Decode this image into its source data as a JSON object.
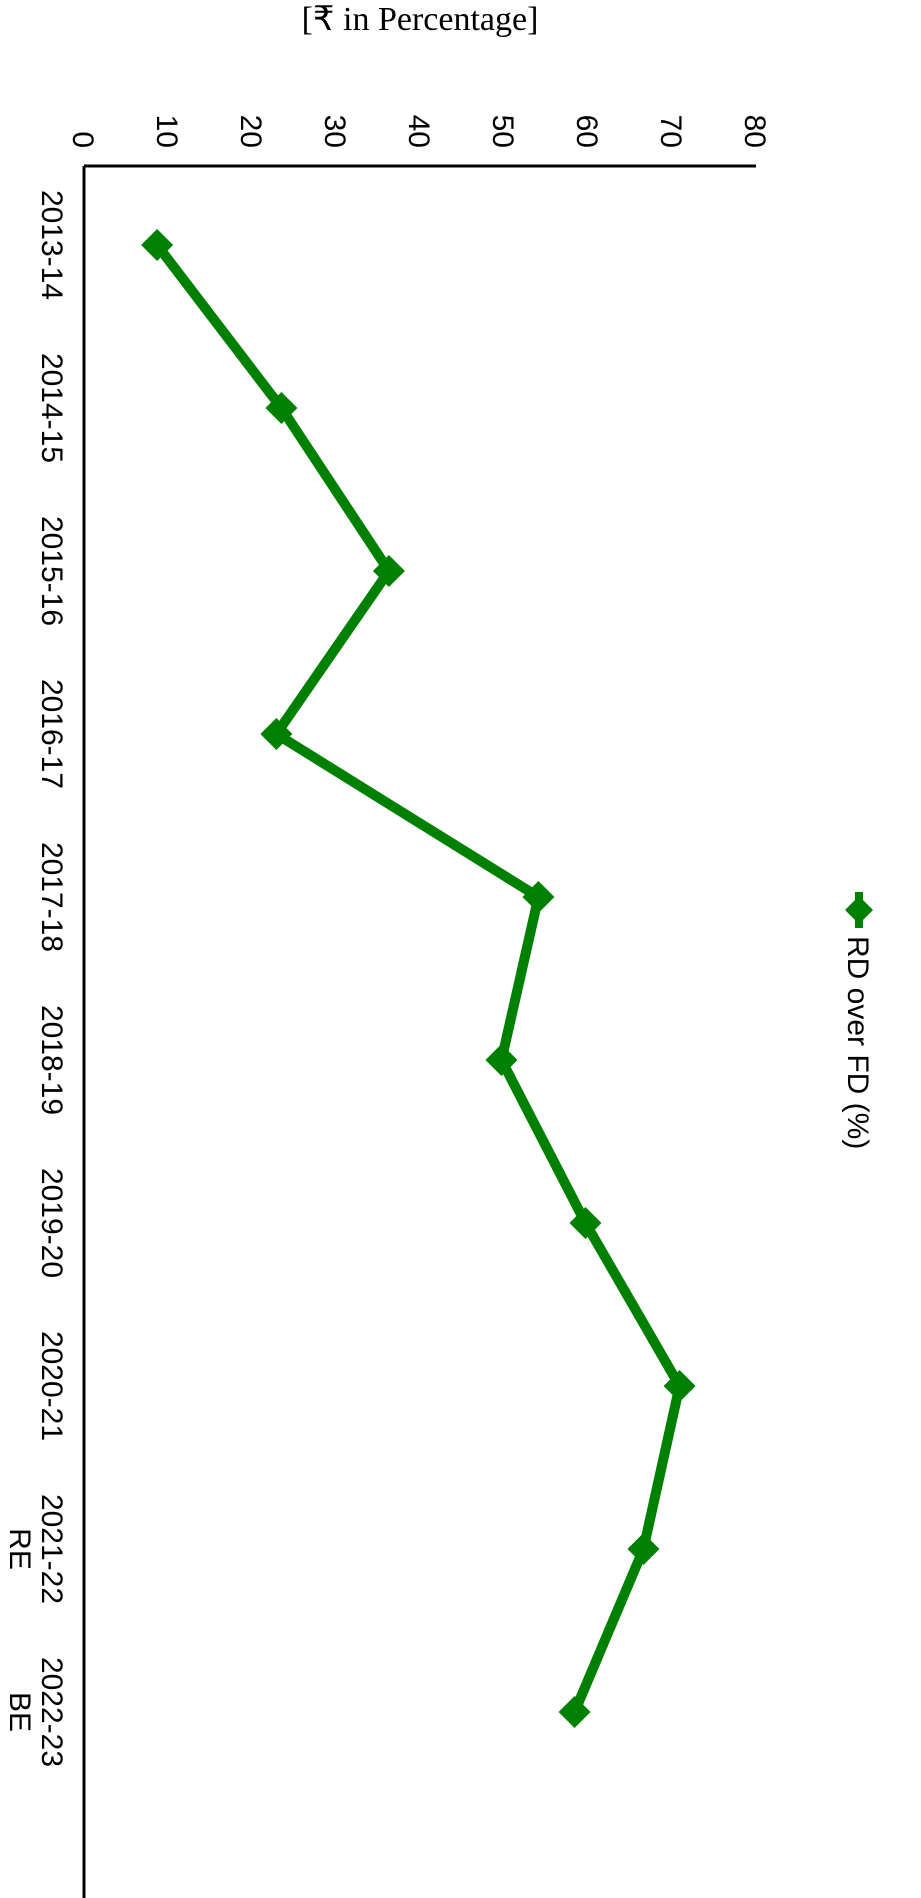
{
  "chart_data": {
    "type": "line",
    "orientation": "rotated-90-clockwise",
    "title": "",
    "xlabel": "",
    "ylabel": "[₹ in Percentage]",
    "categories": [
      [
        "2013-14"
      ],
      [
        "2014-15"
      ],
      [
        "2015-16"
      ],
      [
        "2016-17"
      ],
      [
        "2017-18"
      ],
      [
        "2018-19"
      ],
      [
        "2019-20"
      ],
      [
        "2020-21"
      ],
      [
        "2021-22",
        "RE"
      ],
      [
        "2022-23",
        "BE"
      ]
    ],
    "series": [
      {
        "name": "RD over FD (%)",
        "color": "#008000",
        "marker": "diamond",
        "values": [
          8.7,
          23.5,
          36.3,
          22.9,
          54.1,
          49.7,
          59.7,
          70.9,
          66.6,
          58.4
        ]
      }
    ],
    "ylim": [
      0,
      80
    ],
    "yticks": [
      0,
      10,
      20,
      30,
      40,
      50,
      60,
      70,
      80
    ],
    "grid": false,
    "legend_position": "top"
  }
}
